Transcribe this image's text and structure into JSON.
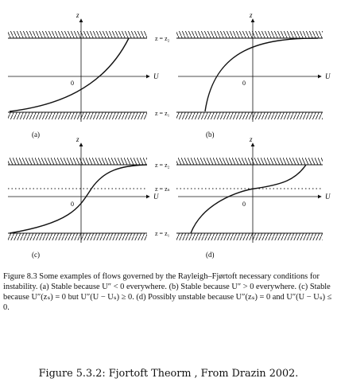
{
  "panels": [
    {
      "id": "a",
      "label": "(a)",
      "axis_z": "z",
      "axis_u": "U",
      "origin": "0",
      "top": "z = z₂",
      "bottom": "z = z₁"
    },
    {
      "id": "b",
      "label": "(b)",
      "axis_z": "z",
      "axis_u": "U",
      "origin": "0",
      "top": "z = z₂",
      "bottom": "z = z₁"
    },
    {
      "id": "c",
      "label": "(c)",
      "axis_z": "z",
      "axis_u": "U",
      "origin": "0",
      "top": "z = z₂",
      "mid": "z = zₛ",
      "bottom": "z = z₁"
    },
    {
      "id": "d",
      "label": "(d)",
      "axis_z": "z",
      "axis_u": "U",
      "origin": "0",
      "bottom": "z = z₁"
    }
  ],
  "caption": "Figure 8.3  Some examples of flows governed by the Rayleigh–Fjørtoft necessary conditions for instability. (a) Stable because U″ < 0 everywhere. (b) Stable because U″ > 0 everywhere. (c) Stable because U″(zₛ) = 0 but U″(U − Uₛ) ≥ 0. (d) Possibly unstable because U″(zₛ) = 0 and U″(U − Uₛ) ≤ 0.",
  "subcaption": "Figure 5.3.2: Fjortoft Theorm , From Drazin 2002."
}
